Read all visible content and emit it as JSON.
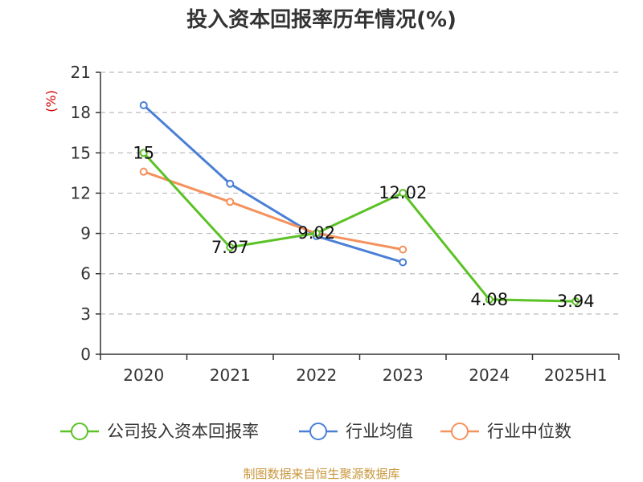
{
  "colors": {
    "company": "#5bc225",
    "industry_avg": "#4a7fd6",
    "industry_median": "#f4915c",
    "grid": "#bbbbbb",
    "axis": "#333333",
    "source": "#c8963c",
    "ylabel": "#d00000"
  },
  "chart_data": {
    "type": "line",
    "title": "投入资本回报率历年情况(%)",
    "ylabel": "(%)",
    "categories": [
      "2020",
      "2021",
      "2022",
      "2023",
      "2024",
      "2025H1"
    ],
    "ylim": [
      0,
      21
    ],
    "yticks": [
      0,
      3,
      6,
      9,
      12,
      15,
      18,
      21
    ],
    "grid": true,
    "legend_position": "bottom",
    "series": [
      {
        "key": "company",
        "name": "公司投入资本回报率",
        "values": [
          15,
          7.97,
          9.02,
          12.02,
          4.08,
          3.94
        ],
        "data_labels": [
          "15",
          "7.97",
          "9.02",
          "12.02",
          "4.08",
          "3.94"
        ]
      },
      {
        "key": "industry_avg",
        "name": "行业均值",
        "values": [
          18.55,
          12.7,
          8.8,
          6.85,
          null,
          null
        ]
      },
      {
        "key": "industry_median",
        "name": "行业中位数",
        "values": [
          13.6,
          11.35,
          9.0,
          7.8,
          null,
          null
        ]
      }
    ]
  },
  "source": "制图数据来自恒生聚源数据库"
}
